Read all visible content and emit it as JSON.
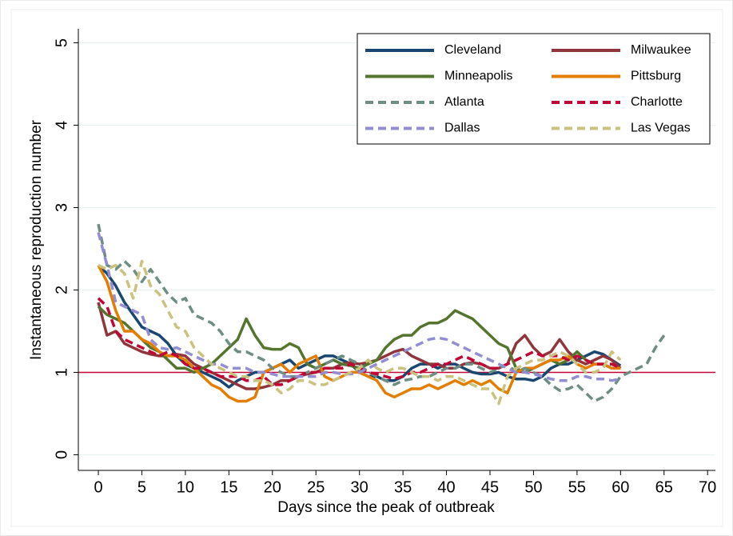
{
  "chart_data": {
    "type": "line",
    "x_label": "Days since the peak of outbreak",
    "y_label": "Instantaneous reproduction number",
    "x": [
      0,
      1,
      2,
      3,
      4,
      5,
      6,
      7,
      8,
      9,
      10,
      11,
      12,
      13,
      14,
      15,
      16,
      17,
      18,
      19,
      20,
      21,
      22,
      23,
      24,
      25,
      26,
      27,
      28,
      29,
      30,
      31,
      32,
      33,
      34,
      35,
      36,
      37,
      38,
      39,
      40,
      41,
      42,
      43,
      44,
      45,
      46,
      47,
      48,
      49,
      50,
      51,
      52,
      53,
      54,
      55,
      56,
      57,
      58,
      59,
      60,
      61,
      62,
      63,
      64,
      65
    ],
    "xlim": [
      -2.3,
      70.9
    ],
    "ylim": [
      -0.19,
      5.17
    ],
    "xticks": [
      0,
      5,
      10,
      15,
      20,
      25,
      30,
      35,
      40,
      45,
      50,
      55,
      60,
      65,
      70
    ],
    "yticks": [
      0,
      1,
      2,
      3,
      4,
      5
    ],
    "grid": true,
    "hline": 1,
    "hline_color": "#c10534",
    "legend_position": "upper right",
    "legend_columns": 2,
    "series": [
      {
        "name": "Cleveland",
        "color": "#1a476f",
        "dash": false,
        "values": [
          2.3,
          2.2,
          2.05,
          1.85,
          1.7,
          1.55,
          1.5,
          1.45,
          1.35,
          1.2,
          1.1,
          1.05,
          1.0,
          0.95,
          0.9,
          0.82,
          0.9,
          0.95,
          1.0,
          1.0,
          1.05,
          1.1,
          1.15,
          1.05,
          1.1,
          1.15,
          1.2,
          1.2,
          1.15,
          1.1,
          1.0,
          0.95,
          0.95,
          0.9,
          0.9,
          0.95,
          1.05,
          1.1,
          1.1,
          1.05,
          1.1,
          1.1,
          1.05,
          1.0,
          0.98,
          0.98,
          1.0,
          0.95,
          0.92,
          0.92,
          0.9,
          0.95,
          1.05,
          1.1,
          1.1,
          1.15,
          1.2,
          1.25,
          1.22,
          1.15,
          1.08,
          null,
          null,
          null,
          null,
          null
        ]
      },
      {
        "name": "Milwaukee",
        "color": "#90353b",
        "dash": false,
        "values": [
          1.85,
          1.45,
          1.5,
          1.35,
          1.3,
          1.25,
          1.22,
          1.2,
          1.2,
          1.22,
          1.2,
          1.1,
          1.05,
          1.0,
          0.95,
          0.9,
          0.85,
          0.8,
          0.8,
          0.82,
          0.85,
          0.9,
          0.9,
          0.95,
          0.98,
          1.0,
          1.05,
          1.05,
          1.1,
          1.12,
          1.1,
          1.12,
          1.15,
          1.2,
          1.25,
          1.28,
          1.2,
          1.15,
          1.1,
          1.1,
          1.05,
          1.05,
          1.1,
          1.12,
          1.1,
          1.05,
          1.05,
          1.1,
          1.35,
          1.45,
          1.3,
          1.2,
          1.25,
          1.4,
          1.25,
          1.15,
          1.1,
          1.15,
          1.2,
          1.15,
          1.05,
          null,
          null,
          null,
          null,
          null
        ]
      },
      {
        "name": "Minneapolis",
        "color": "#55752f",
        "dash": false,
        "values": [
          1.8,
          1.7,
          1.65,
          1.6,
          1.5,
          1.4,
          1.3,
          1.25,
          1.15,
          1.05,
          1.05,
          1.0,
          1.05,
          1.1,
          1.2,
          1.3,
          1.4,
          1.65,
          1.45,
          1.3,
          1.28,
          1.28,
          1.35,
          1.3,
          1.1,
          1.05,
          1.1,
          1.15,
          1.1,
          1.08,
          1.05,
          1.1,
          1.15,
          1.3,
          1.4,
          1.45,
          1.45,
          1.55,
          1.6,
          1.6,
          1.65,
          1.75,
          1.7,
          1.65,
          1.55,
          1.45,
          1.35,
          1.3,
          1.05,
          1.0,
          1.05,
          1.1,
          1.15,
          1.1,
          1.15,
          1.25,
          1.15,
          1.1,
          1.1,
          1.05,
          1.05,
          null,
          null,
          null,
          null,
          null
        ]
      },
      {
        "name": "Pittsburg",
        "color": "#e37e00",
        "dash": false,
        "values": [
          2.3,
          2.1,
          1.75,
          1.5,
          1.5,
          1.4,
          1.35,
          1.25,
          1.2,
          1.2,
          1.15,
          1.05,
          0.95,
          0.85,
          0.8,
          0.7,
          0.65,
          0.65,
          0.7,
          1.0,
          1.05,
          1.1,
          1.0,
          1.1,
          1.15,
          1.2,
          0.95,
          0.9,
          0.95,
          1.0,
          1.0,
          0.95,
          0.9,
          0.75,
          0.7,
          0.75,
          0.8,
          0.8,
          0.85,
          0.8,
          0.85,
          0.9,
          0.85,
          0.9,
          0.85,
          0.9,
          0.8,
          0.75,
          1.0,
          1.05,
          1.05,
          1.1,
          1.15,
          1.15,
          1.2,
          1.1,
          1.05,
          1.1,
          1.1,
          1.05,
          1.05,
          null,
          null,
          null,
          null,
          null
        ]
      },
      {
        "name": "Atlanta",
        "color": "#6e8e84",
        "dash": true,
        "values": [
          2.8,
          2.3,
          2.25,
          2.35,
          2.25,
          2.1,
          2.25,
          2.1,
          1.95,
          1.85,
          1.9,
          1.7,
          1.65,
          1.6,
          1.5,
          1.35,
          1.25,
          1.25,
          1.2,
          1.15,
          1.05,
          1.0,
          0.95,
          0.95,
          1.0,
          1.05,
          1.1,
          1.15,
          1.2,
          1.15,
          1.1,
          1.0,
          0.95,
          0.9,
          0.85,
          0.9,
          0.92,
          0.95,
          0.95,
          1.0,
          1.05,
          1.05,
          1.1,
          1.1,
          1.05,
          1.0,
          1.05,
          1.1,
          1.0,
          1.05,
          1.0,
          0.95,
          0.85,
          0.78,
          0.8,
          0.85,
          0.75,
          0.65,
          0.7,
          0.8,
          0.95,
          1.0,
          1.05,
          1.1,
          1.3,
          1.45
        ]
      },
      {
        "name": "Charlotte",
        "color": "#c10534",
        "dash": true,
        "values": [
          1.9,
          1.8,
          1.5,
          1.4,
          1.35,
          1.3,
          1.25,
          1.2,
          1.25,
          1.2,
          1.1,
          1.05,
          1.05,
          1.0,
          0.95,
          0.95,
          0.95,
          0.9,
          0.9,
          0.95,
          0.85,
          0.85,
          0.9,
          0.95,
          1.0,
          1.0,
          1.05,
          1.05,
          1.05,
          1.1,
          1.05,
          1.0,
          0.98,
          0.95,
          0.92,
          0.95,
          1.0,
          1.0,
          1.05,
          1.1,
          1.1,
          1.15,
          1.2,
          1.15,
          1.1,
          1.05,
          1.05,
          1.1,
          1.15,
          1.2,
          1.25,
          1.2,
          1.2,
          1.2,
          1.15,
          1.2,
          1.15,
          1.1,
          1.1,
          1.1,
          1.05,
          null,
          null,
          null,
          null,
          null
        ]
      },
      {
        "name": "Dallas",
        "color": "#938dd2",
        "dash": true,
        "values": [
          2.7,
          2.3,
          1.85,
          1.8,
          1.75,
          1.7,
          1.4,
          1.3,
          1.28,
          1.3,
          1.25,
          1.2,
          1.15,
          1.1,
          1.1,
          1.05,
          1.05,
          1.05,
          1.0,
          1.0,
          0.98,
          0.95,
          0.95,
          0.95,
          0.95,
          0.95,
          1.0,
          1.0,
          0.98,
          0.98,
          1.0,
          1.05,
          1.1,
          1.15,
          1.2,
          1.25,
          1.3,
          1.35,
          1.4,
          1.42,
          1.4,
          1.35,
          1.3,
          1.25,
          1.2,
          1.15,
          1.1,
          1.05,
          1.0,
          1.0,
          0.98,
          0.95,
          0.92,
          0.9,
          0.9,
          0.95,
          0.95,
          0.92,
          0.92,
          0.9,
          0.92,
          null,
          null,
          null,
          null,
          null
        ]
      },
      {
        "name": "Las Vegas",
        "color": "#cac27e",
        "dash": true,
        "values": [
          2.3,
          2.25,
          2.3,
          2.2,
          1.9,
          2.35,
          2.05,
          1.95,
          1.75,
          1.55,
          1.5,
          1.3,
          1.2,
          1.1,
          1.05,
          1.0,
          0.95,
          0.95,
          0.9,
          0.9,
          0.85,
          0.75,
          0.8,
          0.9,
          0.9,
          0.85,
          0.85,
          0.9,
          0.95,
          1.0,
          1.05,
          1.15,
          1.05,
          1.0,
          1.05,
          1.05,
          1.0,
          0.95,
          0.95,
          0.9,
          0.95,
          0.95,
          0.9,
          0.85,
          0.8,
          0.8,
          0.62,
          0.95,
          1.05,
          1.1,
          1.15,
          1.15,
          1.2,
          1.25,
          1.2,
          1.1,
          1.0,
          1.0,
          1.05,
          1.25,
          1.15,
          null,
          null,
          null,
          null,
          null
        ]
      }
    ]
  }
}
